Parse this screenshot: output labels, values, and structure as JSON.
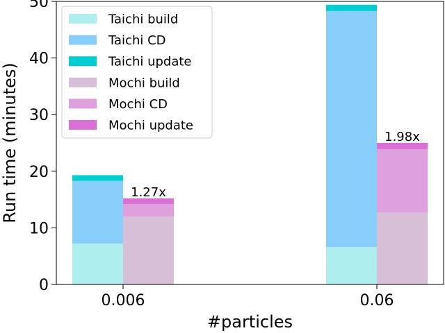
{
  "chart_data": {
    "type": "bar",
    "stacked": true,
    "grouped": true,
    "xlabel": "#particles",
    "ylabel": "Run time (minutes)",
    "ylim": [
      0,
      50
    ],
    "yticks": [
      "0",
      "10",
      "20",
      "30",
      "40",
      "50"
    ],
    "categories": [
      "0.006",
      "0.06"
    ],
    "legend_position": "top-left",
    "groups": [
      {
        "name": "Taichi",
        "series": [
          {
            "name": "Taichi build",
            "color": "#aeeeee",
            "values": [
              7.2,
              6.6
            ]
          },
          {
            "name": "Taichi CD",
            "color": "#87cefa",
            "values": [
              11.1,
              41.7
            ]
          },
          {
            "name": "Taichi update",
            "color": "#00ced1",
            "values": [
              1.0,
              1.1
            ]
          }
        ]
      },
      {
        "name": "Mochi",
        "series": [
          {
            "name": "Mochi build",
            "color": "#d8bfd8",
            "values": [
              12.0,
              12.7
            ]
          },
          {
            "name": "Mochi CD",
            "color": "#dda0dd",
            "values": [
              2.2,
              11.2
            ]
          },
          {
            "name": "Mochi update",
            "color": "#da70d6",
            "values": [
              1.0,
              1.1
            ]
          }
        ]
      }
    ],
    "annotations": [
      "1.27x",
      "1.98x"
    ],
    "grid": false
  }
}
